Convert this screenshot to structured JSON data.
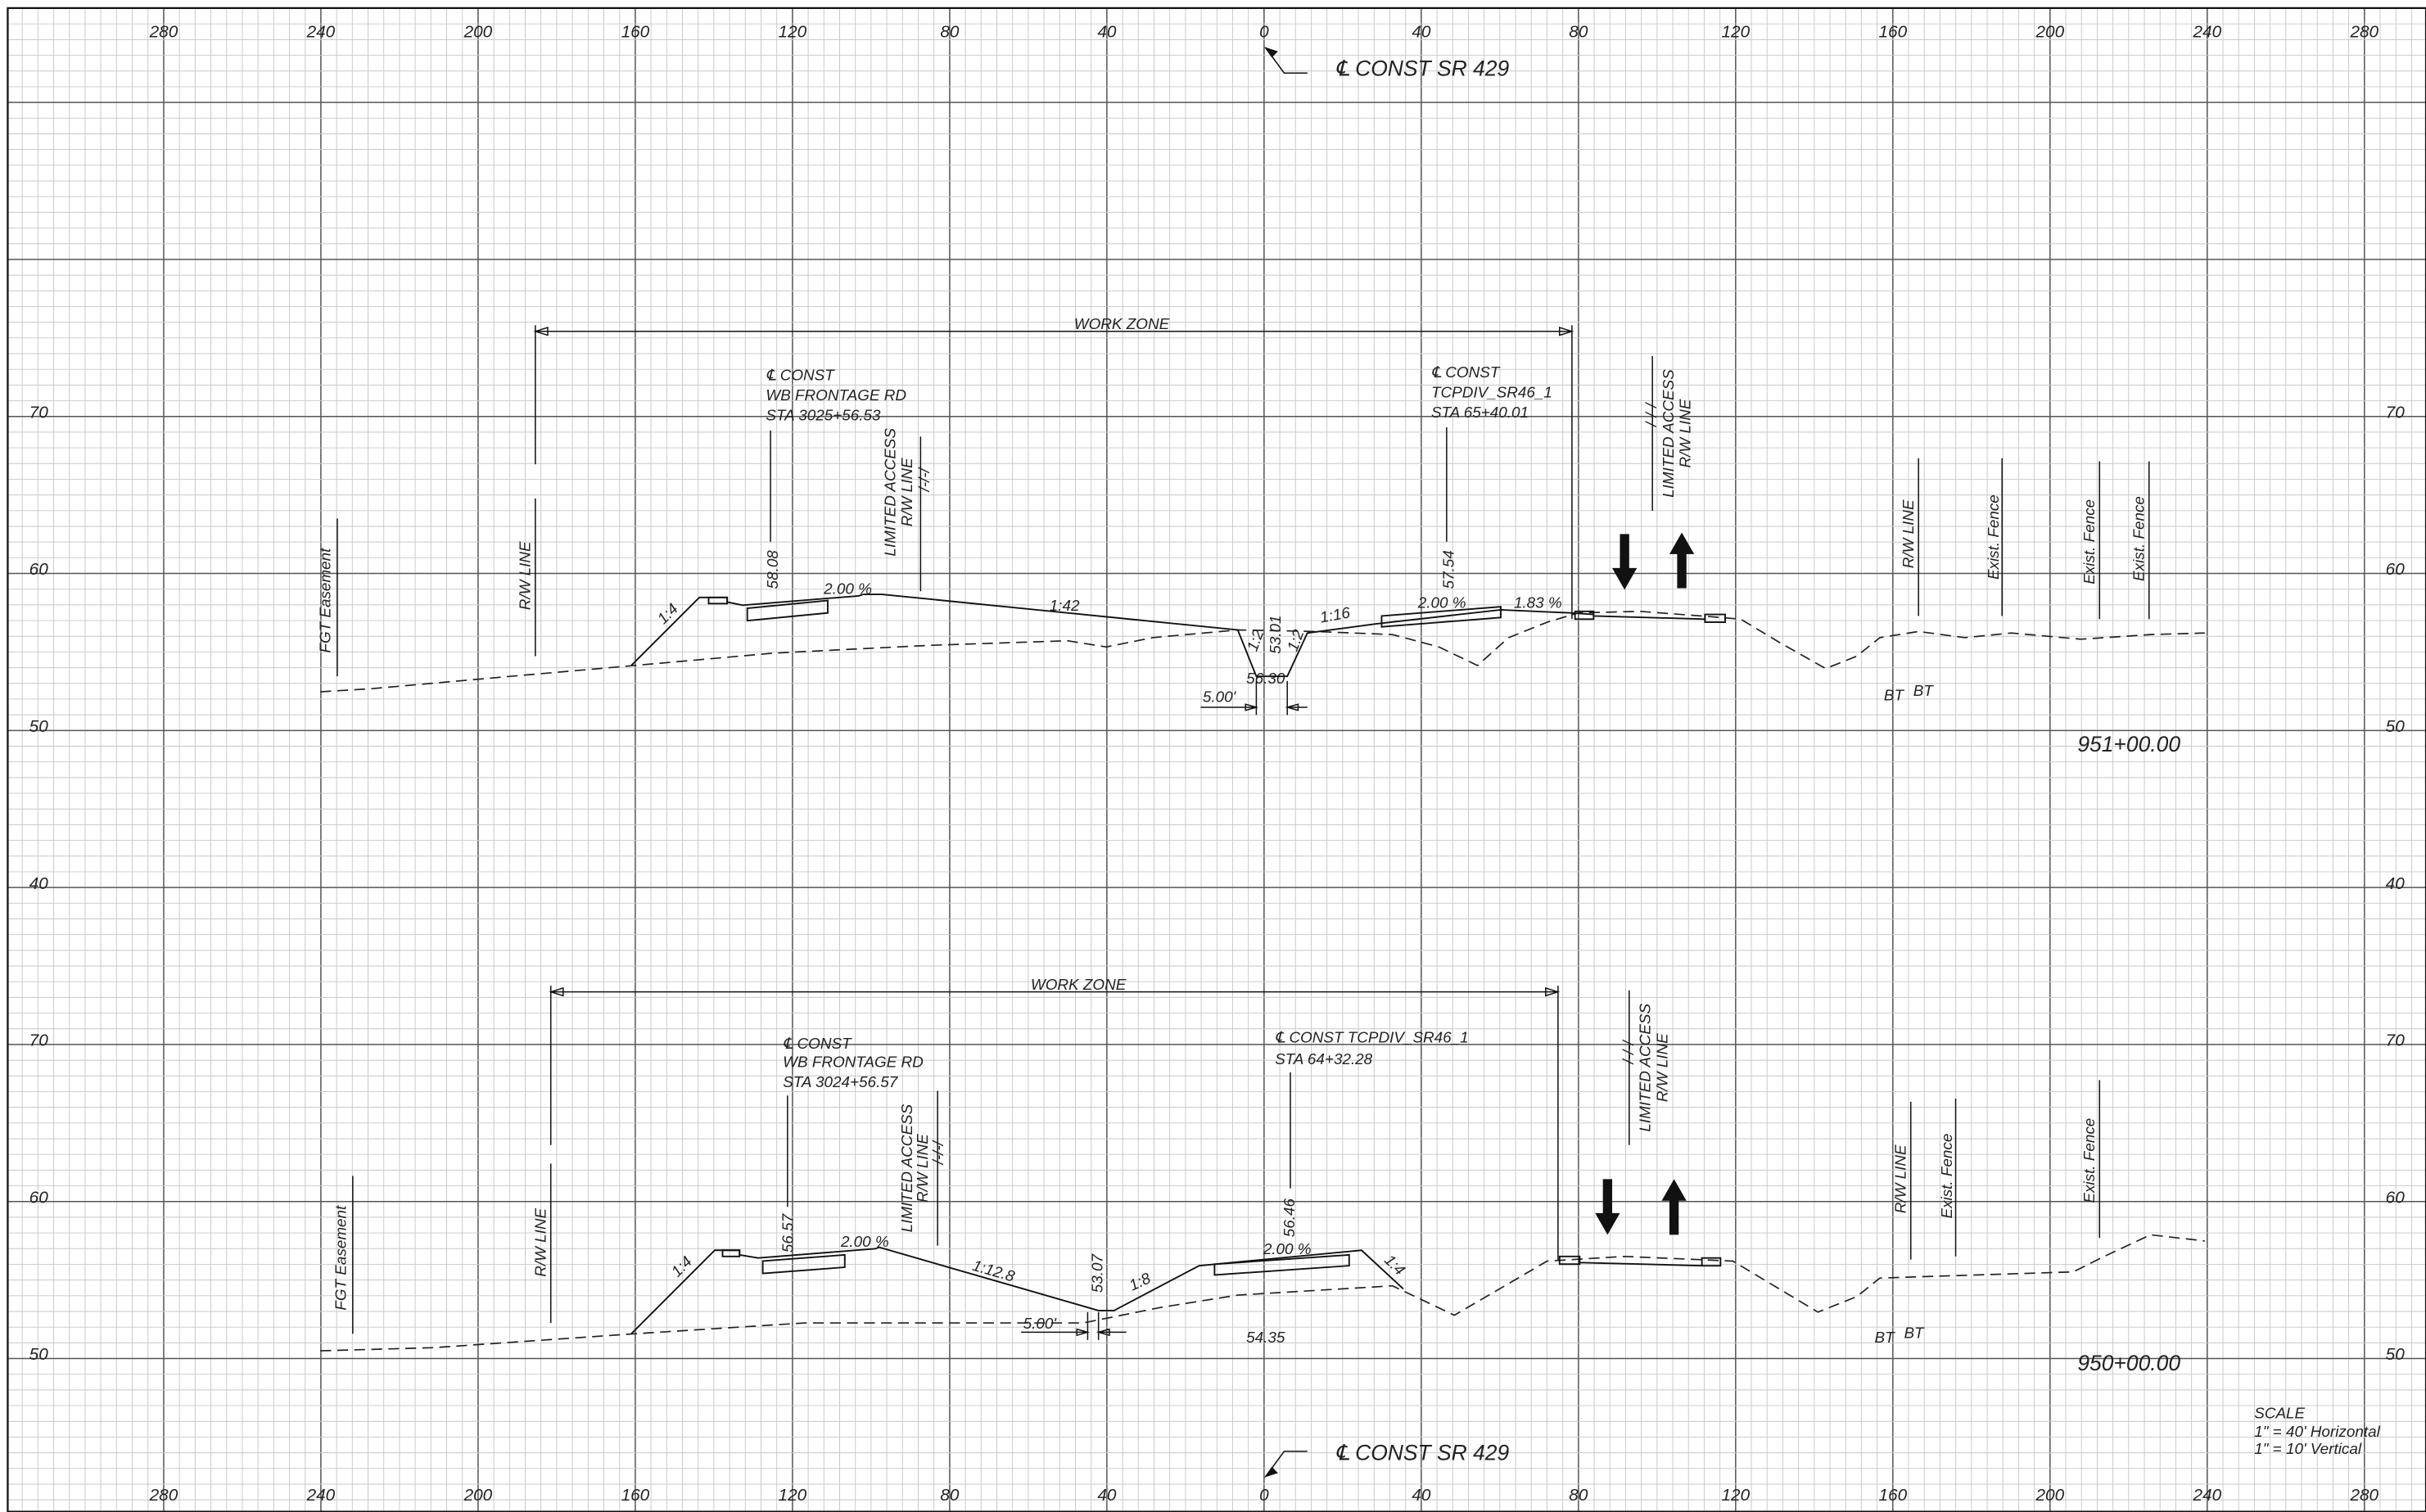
{
  "axis": {
    "x_labels_top": [
      "280",
      "240",
      "200",
      "160",
      "120",
      "80",
      "40",
      "0",
      "40",
      "80",
      "120",
      "160",
      "200",
      "240",
      "280"
    ],
    "x_labels_bottom": [
      "280",
      "240",
      "200",
      "160",
      "120",
      "80",
      "40",
      "0",
      "40",
      "80",
      "120",
      "160",
      "200",
      "240",
      "280"
    ],
    "elev_upper": [
      "70",
      "60",
      "50",
      "40"
    ],
    "elev_lower": [
      "70",
      "60",
      "50"
    ]
  },
  "centerline_top": "℄ CONST  SR 429",
  "centerline_bottom": "℄ CONST  SR 429",
  "upper": {
    "work_zone": "WORK ZONE",
    "frontage": [
      "℄ CONST",
      "WB FRONTAGE RD",
      "STA 3025+56.53"
    ],
    "tcpdiv": [
      "℄ CONST",
      "TCPDIV_SR46_1",
      "STA 65+40.01"
    ],
    "la_left": [
      "LIMITED ACCESS",
      "R/W LINE",
      "/-/-/"
    ],
    "la_right": [
      "/-/-/",
      "LIMITED ACCESS",
      "R/W LINE"
    ],
    "rw_left": "R/W LINE",
    "fgt": "FGT Easement",
    "elev_1": "58.08",
    "slope_1": "1:4",
    "cross_1": "2.00 %",
    "slope_2": "1:42",
    "elev_2": "53.01",
    "slope_3": "1:2",
    "slope_4": "1:2",
    "elev_3": "56.30",
    "offset": "5.00'",
    "slope_5": "1:16",
    "cross_2": "2.00 %",
    "elev_4": "57.54",
    "cross_3": "1.83 %",
    "rw_right": "R/W LINE",
    "fence_1": "Exist. Fence",
    "fence_2": "Exist. Fence",
    "fence_3": "Exist. Fence",
    "bt_1": "BT",
    "bt_2": "BT",
    "station": "951+00.00"
  },
  "lower": {
    "work_zone": "WORK ZONE",
    "frontage": [
      "℄ CONST",
      "WB FRONTAGE RD",
      "STA 3024+56.57"
    ],
    "tcpdiv": [
      "℄ CONST  TCPDIV_SR46_1",
      "STA 64+32.28"
    ],
    "la_left": [
      "LIMITED ACCESS",
      "R/W LINE",
      "/-/-/"
    ],
    "la_right": [
      "/-/-/",
      "LIMITED ACCESS",
      "R/W LINE"
    ],
    "rw_left": "R/W LINE",
    "fgt": "FGT Easement",
    "elev_1": "56.57",
    "slope_1": "1:4",
    "cross_1": "2.00 %",
    "slope_2": "1:12.8",
    "elev_2": "53.07",
    "slope_3": "1:8",
    "offset": "5.00'",
    "elev_3": "54.35",
    "cross_2": "2.00 %",
    "elev_4": "56.46",
    "slope_4": "1:4",
    "rw_right": "R/W LINE",
    "fence_1": "Exist. Fence",
    "fence_2": "Exist. Fence",
    "bt_1": "BT",
    "bt_2": "BT",
    "station": "950+00.00"
  },
  "scale": [
    "SCALE",
    "1\" = 40' Horizontal",
    "1\" = 10' Vertical"
  ]
}
